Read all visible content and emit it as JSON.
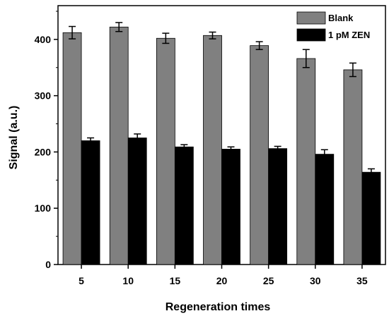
{
  "chart_data": {
    "type": "bar",
    "xlabel": "Regeneration times",
    "ylabel": "Signal (a.u.)",
    "categories": [
      "5",
      "10",
      "15",
      "20",
      "25",
      "30",
      "35"
    ],
    "ylim": [
      0,
      460
    ],
    "yticks": [
      0,
      100,
      200,
      300,
      400
    ],
    "grid": false,
    "legend": "top-right",
    "series": [
      {
        "name": "Blank",
        "color": "#808080",
        "values": [
          412,
          422,
          402,
          407,
          389,
          366,
          346
        ],
        "errors": [
          11,
          8,
          9,
          6,
          7,
          16,
          12
        ]
      },
      {
        "name": "1 pM ZEN",
        "color": "#000000",
        "values": [
          220,
          225,
          209,
          205,
          206,
          196,
          164
        ],
        "errors": [
          5,
          7,
          4,
          4,
          4,
          8,
          6
        ]
      }
    ]
  }
}
